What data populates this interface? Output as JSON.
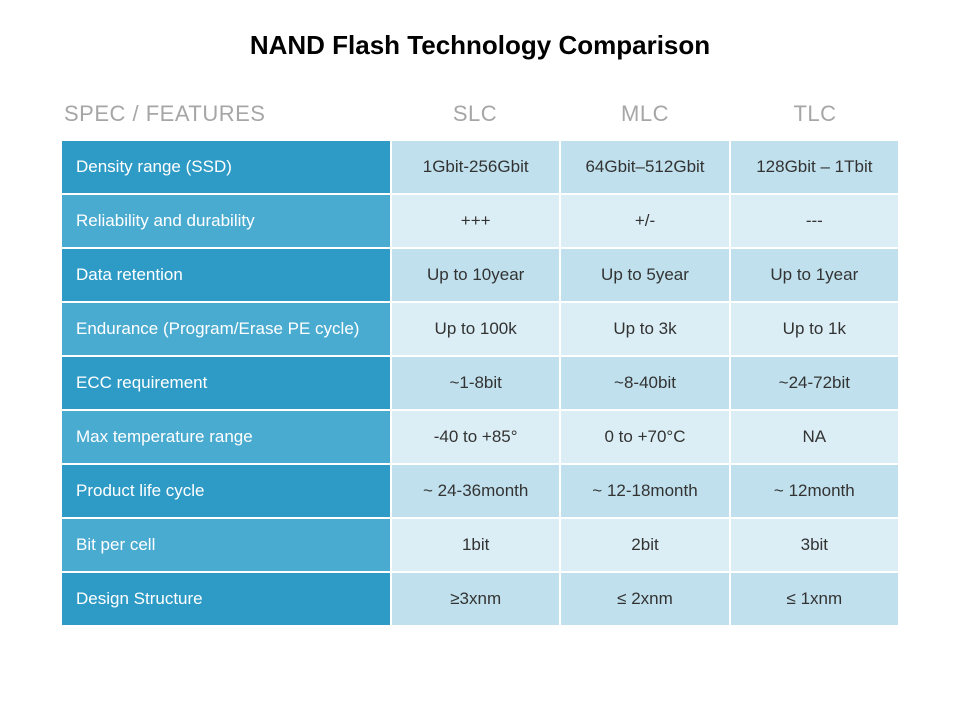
{
  "title": "NAND Flash Technology Comparison",
  "header": {
    "feature_label": "SPEC / FEATURES",
    "columns": [
      "SLC",
      "MLC",
      "TLC"
    ]
  },
  "header_text_color": "#a6a6a6",
  "title_color": "#000000",
  "feature_text_color": "#ffffff",
  "value_text_color": "#333333",
  "cell_border_color": "#ffffff",
  "row_colors": {
    "feature_dark": "#2e9bc6",
    "feature_light": "#4aabd0",
    "value_dark": "#bfe0ec",
    "value_light": "#dbeef5"
  },
  "rows": [
    {
      "feature": "Density range (SSD)",
      "values": [
        "1Gbit-256Gbit",
        "64Gbit–512Gbit",
        "128Gbit – 1Tbit"
      ],
      "shade": "dark"
    },
    {
      "feature": "Reliability and durability",
      "values": [
        "+++",
        "+/-",
        "---"
      ],
      "shade": "light"
    },
    {
      "feature": "Data retention",
      "values": [
        "Up to 10year",
        "Up to 5year",
        "Up to 1year"
      ],
      "shade": "dark"
    },
    {
      "feature": "Endurance (Program/Erase PE cycle)",
      "values": [
        "Up to 100k",
        "Up to 3k",
        "Up to 1k"
      ],
      "shade": "light"
    },
    {
      "feature": "ECC requirement",
      "values": [
        "~1-8bit",
        "~8-40bit",
        "~24-72bit"
      ],
      "shade": "dark"
    },
    {
      "feature": "Max temperature range",
      "values": [
        "-40 to +85°",
        "0 to +70°C",
        "NA"
      ],
      "shade": "light"
    },
    {
      "feature": "Product life cycle",
      "values": [
        "~ 24-36month",
        "~ 12-18month",
        "~ 12month"
      ],
      "shade": "dark"
    },
    {
      "feature": "Bit per cell",
      "values": [
        "1bit",
        "2bit",
        "3bit"
      ],
      "shade": "light"
    },
    {
      "feature": "Design Structure",
      "values": [
        "≥3xnm",
        "≤ 2xnm",
        "≤ 1xnm"
      ],
      "shade": "dark"
    }
  ]
}
